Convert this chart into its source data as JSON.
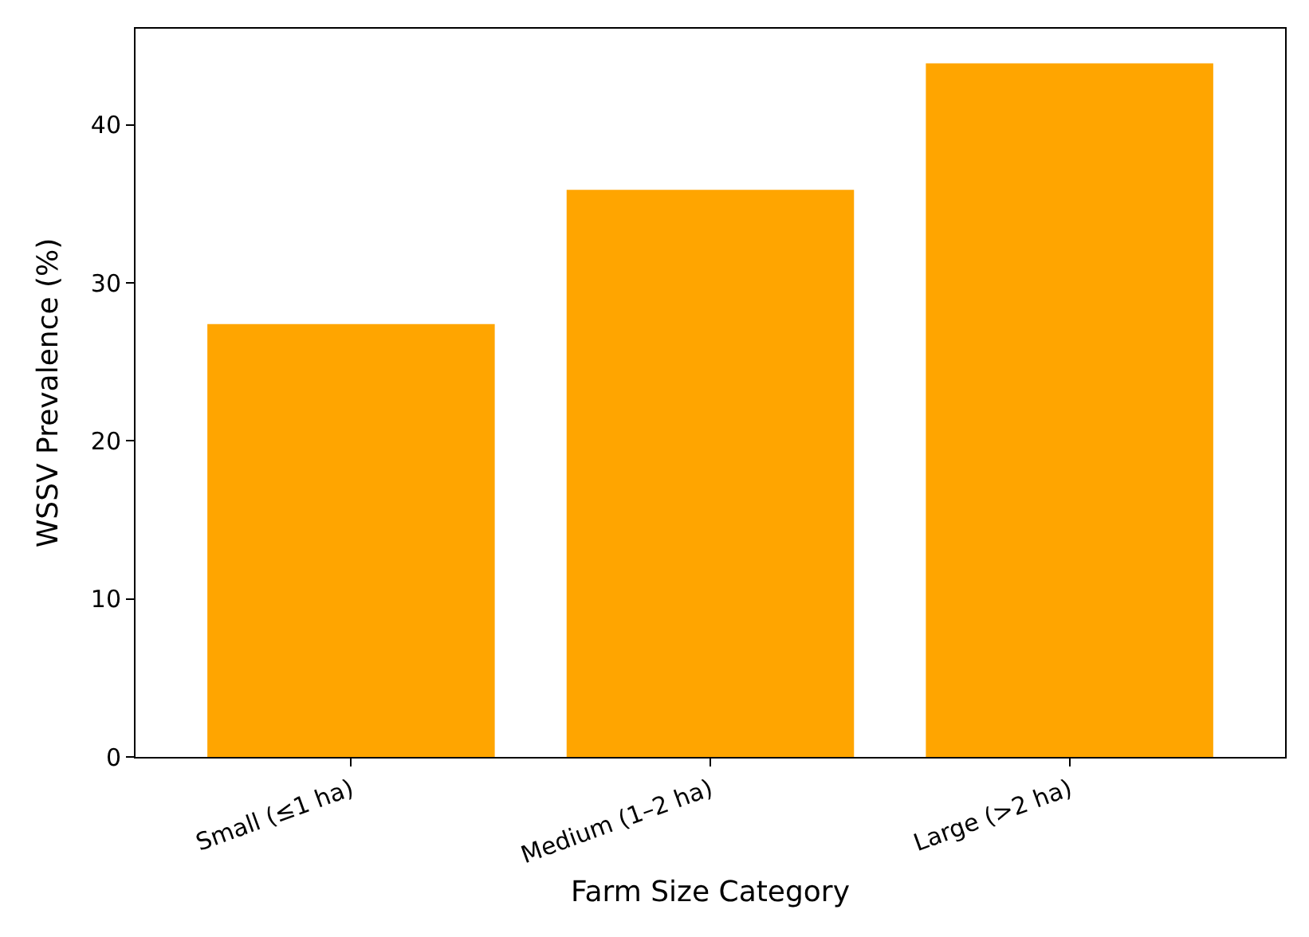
{
  "chart_data": {
    "type": "bar",
    "xlabel": "Farm Size Category",
    "ylabel": "WSSV Prevalence (%)",
    "categories": [
      "Small (≤1 ha)",
      "Medium (1–2 ha)",
      "Large (>2 ha)"
    ],
    "values": [
      27.4,
      35.9,
      43.9
    ],
    "color": "#ffa500",
    "ylim": [
      0,
      46.1
    ],
    "yticks": [
      0,
      10,
      20,
      30,
      40
    ]
  }
}
